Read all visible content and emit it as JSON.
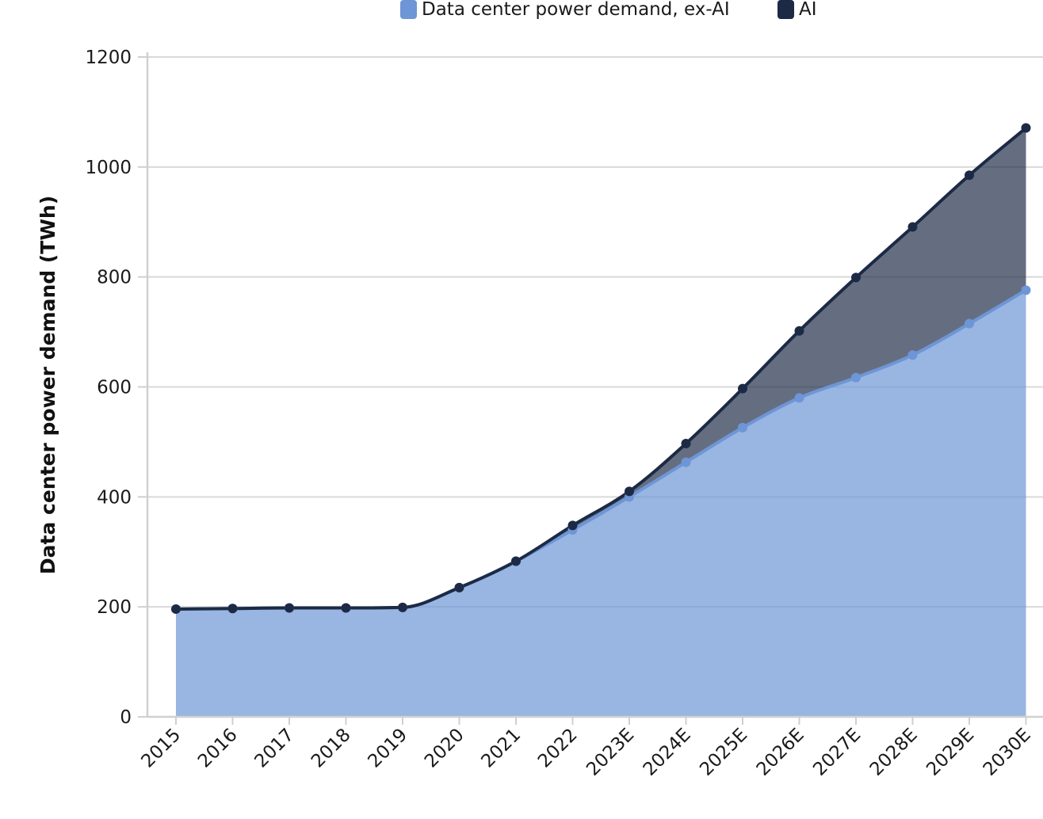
{
  "chart_data": {
    "type": "area",
    "stacked": true,
    "title": "",
    "xlabel": "",
    "ylabel": "Data center power demand (TWh)",
    "ylim": [
      0,
      1200
    ],
    "yticks": [
      0,
      200,
      400,
      600,
      800,
      1000,
      1200
    ],
    "grid": true,
    "legend": "top",
    "categories": [
      "2015",
      "2016",
      "2017",
      "2018",
      "2019",
      "2020",
      "2021",
      "2022",
      "2023E",
      "2024E",
      "2025E",
      "2026E",
      "2027E",
      "2028E",
      "2029E",
      "2030E"
    ],
    "series": [
      {
        "name": "Data center power demand, ex-AI",
        "color": "#6e96d6",
        "values": [
          196,
          197,
          198,
          198,
          199,
          235,
          283,
          340,
          400,
          463,
          526,
          580,
          617,
          658,
          715,
          776
        ]
      },
      {
        "name": "AI",
        "color": "#1c2a45",
        "values": [
          0,
          0,
          0,
          0,
          0,
          0,
          0,
          8,
          10,
          34,
          71,
          122,
          182,
          233,
          270,
          295
        ]
      }
    ],
    "totals": [
      196,
      197,
      198,
      198,
      199,
      235,
      283,
      348,
      410,
      497,
      597,
      702,
      799,
      891,
      985,
      1071
    ]
  }
}
